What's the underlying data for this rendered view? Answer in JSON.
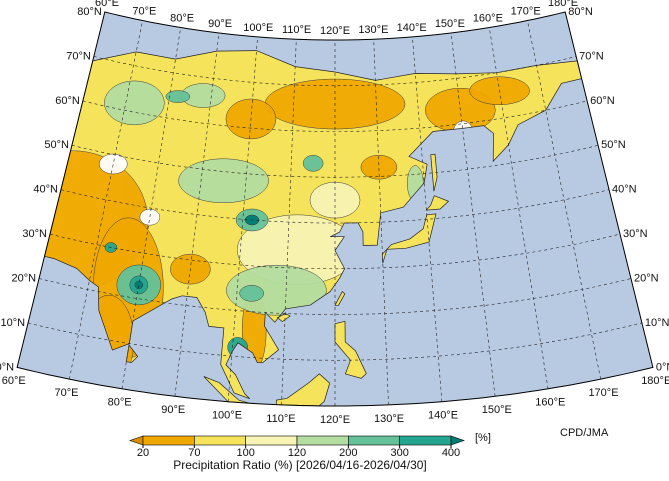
{
  "map": {
    "lon_labels": [
      "60°E",
      "70°E",
      "80°E",
      "90°E",
      "100°E",
      "110°E",
      "120°E",
      "130°E",
      "140°E",
      "150°E",
      "160°E",
      "170°E",
      "180°E"
    ],
    "lat_labels": [
      "0°N",
      "10°N",
      "20°N",
      "30°N",
      "40°N",
      "50°N",
      "60°N",
      "70°N",
      "80°N"
    ],
    "credit": "CPD/JMA"
  },
  "legend": {
    "title": "Precipitation Ratio (%) [2026/04/16-2026/04/30]",
    "unit": "[%]",
    "ticks": [
      20,
      70,
      100,
      120,
      200,
      300,
      400
    ],
    "colors": [
      "#d98e00",
      "#f0a800",
      "#f6e35c",
      "#f7f4b4",
      "#b4dda0",
      "#64c19a",
      "#24a58f",
      "#007c72"
    ]
  }
}
